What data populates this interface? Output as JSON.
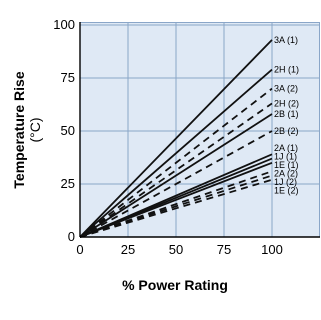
{
  "chart_data": {
    "type": "line",
    "xlabel": "% Power Rating",
    "ylabel": "Temperature Rise",
    "ylabel_unit": "(°C)",
    "xlim": [
      0,
      100
    ],
    "ylim": [
      0,
      100
    ],
    "x_ticks": [
      "0",
      "25",
      "50",
      "75",
      "100"
    ],
    "y_ticks": [
      "0",
      "25",
      "50",
      "75",
      "100"
    ],
    "grid": true,
    "plot_background": "#dfe9f5",
    "grid_color": "#8aa6c8",
    "line_color": "#111111",
    "series": [
      {
        "name": "3A (1)",
        "style": "solid",
        "x": [
          0,
          100
        ],
        "y": [
          0,
          93
        ]
      },
      {
        "name": "2H (1)",
        "style": "solid",
        "x": [
          0,
          100
        ],
        "y": [
          0,
          79
        ]
      },
      {
        "name": "3A (2)",
        "style": "dashed",
        "x": [
          0,
          100
        ],
        "y": [
          0,
          70
        ]
      },
      {
        "name": "2H (2)",
        "style": "dashed",
        "x": [
          0,
          100
        ],
        "y": [
          0,
          63
        ]
      },
      {
        "name": "2B (1)",
        "style": "solid",
        "x": [
          0,
          100
        ],
        "y": [
          0,
          58
        ]
      },
      {
        "name": "2B (2)",
        "style": "dashed",
        "x": [
          0,
          100
        ],
        "y": [
          0,
          50
        ]
      },
      {
        "name": "2A (1)",
        "style": "solid",
        "x": [
          0,
          100
        ],
        "y": [
          0,
          39
        ]
      },
      {
        "name": "1J (1)",
        "style": "solid",
        "x": [
          0,
          100
        ],
        "y": [
          0,
          37
        ]
      },
      {
        "name": "1E (1)",
        "style": "solid",
        "x": [
          0,
          100
        ],
        "y": [
          0,
          35
        ]
      },
      {
        "name": "2A (2)",
        "style": "dashed",
        "x": [
          0,
          100
        ],
        "y": [
          0,
          31
        ]
      },
      {
        "name": "1J (2)",
        "style": "dashed",
        "x": [
          0,
          100
        ],
        "y": [
          0,
          29
        ]
      },
      {
        "name": "1E (2)",
        "style": "dashed",
        "x": [
          0,
          100
        ],
        "y": [
          0,
          27
        ]
      }
    ],
    "series_labels": [
      {
        "text": "3A (1)",
        "y": 93
      },
      {
        "text": "2H (1)",
        "y": 79
      },
      {
        "text": "3A (2)",
        "y": 70
      },
      {
        "text": "2H (2)",
        "y": 63
      },
      {
        "text": "2B (1)",
        "y": 58
      },
      {
        "text": "2B (2)",
        "y": 50
      },
      {
        "text": "2A (1)",
        "y": 42
      },
      {
        "text": "1J (1)",
        "y": 38
      },
      {
        "text": "1E (1)",
        "y": 34
      },
      {
        "text": "2A (2)",
        "y": 30
      },
      {
        "text": "1J (2)",
        "y": 26
      },
      {
        "text": "1E (2)",
        "y": 22
      }
    ]
  }
}
